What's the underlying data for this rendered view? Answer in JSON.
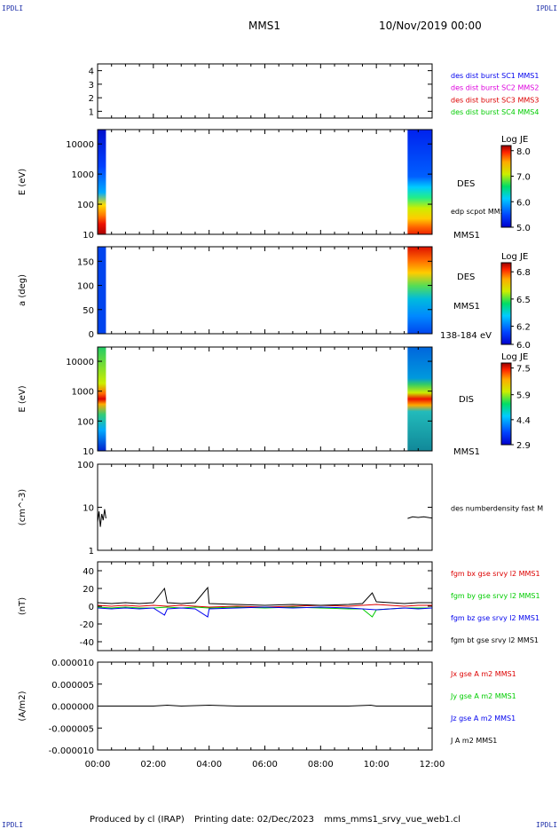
{
  "header": {
    "corner_label": "IPDLI",
    "mission": "MMS1",
    "datetime": "10/Nov/2019 00:00"
  },
  "footer": {
    "produced_by": "Produced by cl (IRAP)",
    "printing_date": "Printing date: 02/Dec/2023",
    "product": "mms_mms1_srvy_vue_web1.cl"
  },
  "colors": {
    "blue": "#0000ee",
    "magenta": "#dd00dd",
    "red": "#dd0000",
    "green": "#00cc00",
    "black": "#000000"
  },
  "chart_data": [
    {
      "type": "line",
      "name": "spacecraft-availability",
      "ylim": [
        0.5,
        4.5
      ],
      "yticks": [
        1,
        2,
        3,
        4
      ],
      "legend": [
        {
          "label": "des dist burst SC1 MMS1",
          "color": "#0000ee"
        },
        {
          "label": "des dist burst SC2 MMS2",
          "color": "#dd00dd"
        },
        {
          "label": "des dist burst SC3 MMS3",
          "color": "#dd0000"
        },
        {
          "label": "des dist burst SC4 MMS4",
          "color": "#00cc00"
        }
      ]
    },
    {
      "type": "heatmap",
      "name": "des-energy-spectrogram",
      "ylabel": "E (eV)",
      "yscale": "log",
      "ylim": [
        10,
        30000
      ],
      "yticks": [
        "10",
        "100",
        "1000",
        "10000"
      ],
      "colorbar": {
        "title": "Log JE",
        "min": 5.0,
        "max": 8.2,
        "ticks": [
          "5.0",
          "6.0",
          "7.0",
          "8.0"
        ]
      },
      "right_labels": [
        "DES",
        "edp scpot MMS1",
        "MMS1"
      ],
      "data_intervals_hours": [
        [
          0.0,
          0.3
        ],
        [
          11.12,
          12.0
        ]
      ]
    },
    {
      "type": "heatmap",
      "name": "des-pitch-angle",
      "ylabel": "a (deg)",
      "ylim": [
        0,
        180
      ],
      "yticks": [
        "0",
        "50",
        "100",
        "150"
      ],
      "colorbar": {
        "title": "Log JE",
        "min": 6.0,
        "max": 6.9,
        "ticks": [
          "6.0",
          "6.2",
          "6.5",
          "6.8"
        ]
      },
      "right_labels": [
        "DES",
        "MMS1",
        "138-184 eV"
      ],
      "data_intervals_hours": [
        [
          0.0,
          0.3
        ],
        [
          11.12,
          12.0
        ]
      ]
    },
    {
      "type": "heatmap",
      "name": "dis-energy-spectrogram",
      "ylabel": "E (eV)",
      "yscale": "log",
      "ylim": [
        10,
        30000
      ],
      "yticks": [
        "10",
        "100",
        "1000",
        "10000"
      ],
      "colorbar": {
        "title": "Log JE",
        "min": 2.9,
        "max": 7.8,
        "ticks": [
          "2.9",
          "4.4",
          "5.9",
          "7.5"
        ]
      },
      "right_labels": [
        "DIS",
        "MMS1"
      ],
      "data_intervals_hours": [
        [
          0.0,
          0.3
        ],
        [
          11.12,
          12.0
        ]
      ]
    },
    {
      "type": "line",
      "name": "electron-density",
      "ylabel": "(cm^-3)",
      "yscale": "log",
      "ylim": [
        1,
        100
      ],
      "yticks": [
        "1",
        "10",
        "100"
      ],
      "legend": [
        {
          "label": "des numberdensity fast M",
          "color": "#000000"
        }
      ],
      "series": [
        {
          "name": "des numberdensity fast M",
          "color": "#000000",
          "segments": [
            {
              "x": [
                0.0,
                0.05,
                0.1,
                0.15,
                0.2,
                0.25,
                0.3
              ],
              "y": [
                4.5,
                8,
                3.5,
                7,
                5,
                9,
                5.5
              ]
            },
            {
              "x": [
                11.12,
                11.3,
                11.5,
                11.7,
                11.9,
                12.0
              ],
              "y": [
                5.5,
                6.0,
                5.8,
                6.0,
                5.7,
                5.6
              ]
            }
          ]
        }
      ]
    },
    {
      "type": "line",
      "name": "magnetic-field",
      "ylabel": "(nT)",
      "ylim": [
        -50,
        50
      ],
      "yticks": [
        "-40",
        "-20",
        "0",
        "20",
        "40"
      ],
      "legend": [
        {
          "label": "fgm bx gse srvy l2 MMS1",
          "color": "#dd0000"
        },
        {
          "label": "fgm by gse srvy l2 MMS1",
          "color": "#00cc00"
        },
        {
          "label": "fgm bz gse srvy l2 MMS1",
          "color": "#0000ee"
        },
        {
          "label": "fgm bt gse srvy l2 MMS1",
          "color": "#000000"
        }
      ],
      "series": [
        {
          "name": "fgm bx gse srvy l2 MMS1",
          "color": "#dd0000",
          "x": [
            0,
            0.5,
            1,
            1.5,
            2,
            2.5,
            3,
            3.5,
            4,
            5,
            6,
            7,
            8,
            9,
            9.5,
            10,
            10.5,
            11,
            11.5,
            12
          ],
          "y": [
            1,
            0,
            1,
            0,
            1,
            0,
            1,
            0,
            -1,
            0,
            -1,
            0,
            1,
            0,
            1,
            2,
            1,
            0,
            1,
            1
          ]
        },
        {
          "name": "fgm by gse srvy l2 MMS1",
          "color": "#00cc00",
          "x": [
            0,
            0.5,
            1,
            1.5,
            2,
            2.5,
            3,
            3.5,
            4,
            5,
            6,
            7,
            8,
            9,
            9.5,
            9.85,
            10,
            10.5,
            11,
            11.5,
            12
          ],
          "y": [
            -1,
            -2,
            -1,
            -2,
            -2,
            -1,
            -2,
            -1,
            -2,
            -1,
            -2,
            -1,
            -2,
            -3,
            -3,
            -12,
            -4,
            -3,
            -2,
            -2,
            -2
          ]
        },
        {
          "name": "fgm bz gse srvy l2 MMS1",
          "color": "#0000ee",
          "x": [
            0,
            0.5,
            1,
            1.5,
            2,
            2.4,
            2.5,
            3,
            3.5,
            3.95,
            4,
            5,
            6,
            7,
            8,
            9,
            9.5,
            10,
            10.5,
            11,
            11.5,
            12
          ],
          "y": [
            -2,
            -3,
            -2,
            -3,
            -2,
            -10,
            -3,
            -2,
            -3,
            -12,
            -3,
            -2,
            -1,
            -2,
            -1,
            -2,
            -3,
            -4,
            -3,
            -2,
            -3,
            -2
          ]
        },
        {
          "name": "fgm bt gse srvy l2 MMS1",
          "color": "#000000",
          "x": [
            0,
            0.5,
            1,
            1.5,
            2,
            2.4,
            2.5,
            3,
            3.5,
            3.95,
            4,
            5,
            6,
            7,
            8,
            9,
            9.5,
            9.85,
            10,
            10.5,
            11,
            11.5,
            12
          ],
          "y": [
            4,
            3,
            4,
            3,
            4,
            20,
            4,
            3,
            4,
            21,
            3,
            2,
            1,
            2,
            1,
            2,
            3,
            15,
            5,
            4,
            3,
            4,
            4
          ]
        }
      ]
    },
    {
      "type": "line",
      "name": "current-density",
      "ylabel": "(A/m2)",
      "ylim": [
        -1e-05,
        1e-05
      ],
      "yticks": [
        "-0.000010",
        "-0.000005",
        "0.000000",
        "0.000005",
        "0.000010"
      ],
      "xlim": [
        0,
        12
      ],
      "xticks": [
        "00:00",
        "02:00",
        "04:00",
        "06:00",
        "08:00",
        "10:00",
        "12:00"
      ],
      "legend": [
        {
          "label": "Jx gse A m2 MMS1",
          "color": "#dd0000"
        },
        {
          "label": "Jy gse A m2 MMS1",
          "color": "#00cc00"
        },
        {
          "label": "Jz gse A m2 MMS1",
          "color": "#0000ee"
        },
        {
          "label": "J A m2 MMS1",
          "color": "#000000"
        }
      ],
      "series": [
        {
          "name": "J A m2 MMS1",
          "color": "#000000",
          "x": [
            0,
            1,
            2,
            2.5,
            3,
            4,
            5,
            6,
            7,
            8,
            9,
            9.8,
            10,
            11,
            12
          ],
          "y": [
            0,
            0,
            0,
            2e-07,
            0,
            2e-07,
            0,
            0,
            0,
            0,
            0,
            2e-07,
            0,
            0,
            0
          ]
        }
      ]
    }
  ]
}
